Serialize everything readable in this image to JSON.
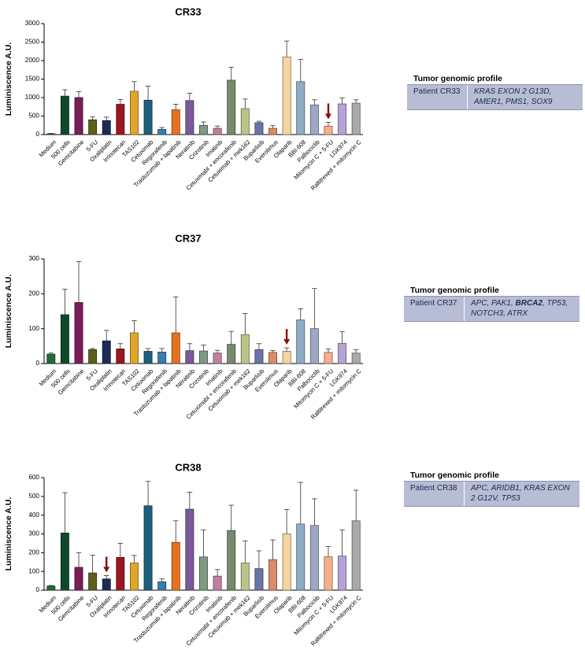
{
  "chart_data": [
    {
      "id": "cr33",
      "type": "bar",
      "title": "CR33",
      "ylabel": "Luminiscence A.U.",
      "xlabel": "",
      "ylim": [
        0,
        3000
      ],
      "yticks": [
        "0",
        "500",
        "1000",
        "1500",
        "2000",
        "2500",
        "3000"
      ],
      "categories": [
        "Medium",
        "500 cells",
        "Gemcitabine",
        "5-FU",
        "Oxaliplatin",
        "Irrinotecan",
        "TAS102",
        "Cetuximab",
        "Regorafenib",
        "Trastuzumab + lapatinib",
        "Neratinib",
        "Crizotinib",
        "Imatinib",
        "Cetuximabl + encorafenib",
        "Cetuximab + mek162",
        "Buparlisib",
        "Everolimus",
        "Olaparib",
        "BBI-608",
        "Palbociclib",
        "Mitomycin C + 5-FU",
        "LGK974",
        "Raltitrexed + mitomycin C"
      ],
      "values": [
        20,
        1040,
        1000,
        400,
        380,
        820,
        1170,
        930,
        140,
        670,
        920,
        250,
        170,
        1470,
        700,
        320,
        170,
        2100,
        1430,
        800,
        230,
        830,
        850
      ],
      "errors": [
        10,
        170,
        160,
        80,
        90,
        130,
        260,
        380,
        50,
        150,
        200,
        90,
        60,
        350,
        260,
        40,
        70,
        430,
        600,
        140,
        100,
        160,
        90
      ],
      "arrow_at": "Mitomycin C + 5-FU"
    },
    {
      "id": "cr37",
      "type": "bar",
      "title": "CR37",
      "ylabel": "Luminiscence A.U.",
      "xlabel": "",
      "ylim": [
        0,
        300
      ],
      "yticks": [
        "0",
        "100",
        "200",
        "300"
      ],
      "categories": [
        "Medium",
        "500 cells",
        "Gemcitabine",
        "5-FU",
        "Oxaliplatin",
        "Irrinotecan",
        "TAS102",
        "Cetuximab",
        "Regorafenib",
        "Trastuzumab + lapatinib",
        "Neratinib",
        "Crizotinib",
        "Imatinib",
        "Cetuximabl + encorafenib",
        "Cetuximab + mek162",
        "Buparlisib",
        "Everolimus",
        "Olaparib",
        "BBI-608",
        "Palbociclib",
        "Mitomycin C + 5-FU",
        "LGK974",
        "Raltitrexed + mitomycin C"
      ],
      "values": [
        27,
        140,
        175,
        40,
        65,
        42,
        88,
        35,
        33,
        88,
        37,
        36,
        30,
        55,
        83,
        40,
        32,
        35,
        125,
        100,
        32,
        58,
        30
      ],
      "errors": [
        3,
        73,
        117,
        3,
        30,
        15,
        35,
        8,
        10,
        103,
        20,
        17,
        8,
        37,
        60,
        17,
        5,
        10,
        32,
        115,
        10,
        33,
        10
      ],
      "arrow_at": "Olaparib"
    },
    {
      "id": "cr38",
      "type": "bar",
      "title": "CR38",
      "ylabel": "Luminiscence A.U.",
      "xlabel": "",
      "ylim": [
        0,
        600
      ],
      "yticks": [
        "0",
        "100",
        "200",
        "300",
        "400",
        "500",
        "600"
      ],
      "categories": [
        "Medium",
        "500 cells",
        "Gemcitabine",
        "5-FU",
        "Oxaliplatin",
        "Irrinotecan",
        "TAS102",
        "Cetuximab",
        "Regorafenib",
        "Trastuzumab + lapatinib",
        "Neratinib",
        "Crizotinib",
        "Imatinib",
        "Cetuximabl + encorafenib",
        "Cetuximab + mek162",
        "Buparlisib",
        "Everolimus",
        "Olaparib",
        "BBI-608",
        "Palbociclib",
        "Mitomycin C + 5-FU",
        "LGK974",
        "Raltitrexed + mitomycin C"
      ],
      "values": [
        22,
        305,
        122,
        92,
        60,
        175,
        145,
        450,
        45,
        255,
        432,
        177,
        75,
        318,
        145,
        115,
        163,
        300,
        353,
        345,
        178,
        182,
        370
      ],
      "errors": [
        3,
        215,
        78,
        95,
        18,
        75,
        40,
        130,
        15,
        115,
        90,
        145,
        35,
        135,
        118,
        95,
        105,
        130,
        222,
        142,
        55,
        140,
        163
      ],
      "arrow_at": "Oxaliplatin"
    }
  ],
  "bar_colors": [
    "#1f6b3c",
    "#0f4a2b",
    "#7a1d59",
    "#5d5e1b",
    "#1c2a57",
    "#9a1720",
    "#e0a62c",
    "#1d5f7d",
    "#3b7cab",
    "#e8701d",
    "#7a5a9a",
    "#7f9a80",
    "#c07f9e",
    "#768a6c",
    "#b9c489",
    "#6a74a6",
    "#d98c6a",
    "#f5d49e",
    "#8eacc4",
    "#9da8c2",
    "#f5b08a",
    "#b7a3d9",
    "#a9aaa8"
  ],
  "arrow_color": "#8b0d0d",
  "profiles": [
    {
      "title": "Tumor genomic profile",
      "patient": "Patient CR33",
      "genes": "KRAS EXON 2 G13D, AMER1, PMS1, SOX9"
    },
    {
      "title": "Tumor genomic profile",
      "patient": "Patient CR37",
      "genes_pre": "APC, PAK1, ",
      "genes_bold": "BRCA2",
      "genes_post": ", TP53, NOTCH3, ATRX"
    },
    {
      "title": "Tumor genomic profile",
      "patient": "Patient CR38",
      "genes": "APC, ARIDB1, KRAS EXON 2 G12V, TP53"
    }
  ]
}
